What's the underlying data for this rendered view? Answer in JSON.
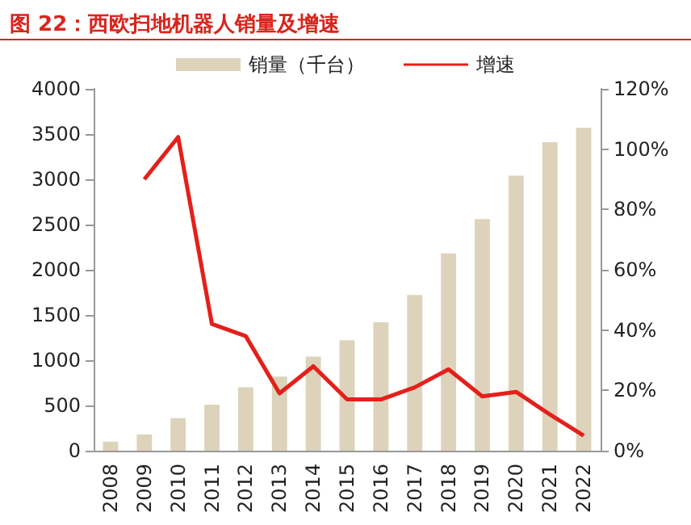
{
  "chart_data": {
    "type": "bar",
    "title": "图 22：西欧扫地机器人销量及增速",
    "categories": [
      "2008",
      "2009",
      "2010",
      "2011",
      "2012",
      "2013",
      "2014",
      "2015",
      "2016",
      "2017",
      "2018",
      "2019",
      "2020",
      "2021",
      "2022"
    ],
    "series": [
      {
        "name": "销量（千台）",
        "color": "#ddd3bb",
        "values": [
          100,
          180,
          360,
          510,
          700,
          820,
          1040,
          1220,
          1420,
          1720,
          2180,
          2560,
          3040,
          3410,
          3570
        ]
      },
      {
        "name": "增速",
        "type": "line",
        "axis": "y2",
        "color": "#e3201b",
        "values": [
          null,
          90,
          104,
          42,
          38,
          19,
          28,
          17,
          17,
          21,
          27,
          18,
          19.5,
          12,
          5
        ]
      }
    ],
    "ylim": [
      0,
      4000
    ],
    "yticks": [
      0,
      500,
      1000,
      1500,
      2000,
      2500,
      3000,
      3500,
      4000
    ],
    "y2lim": [
      0,
      120
    ],
    "y2ticks": [
      {
        "value": 0,
        "label": "0%"
      },
      {
        "value": 20,
        "label": "20%"
      },
      {
        "value": 40,
        "label": "40%"
      },
      {
        "value": 60,
        "label": "60%"
      },
      {
        "value": 80,
        "label": "80%"
      },
      {
        "value": 100,
        "label": "100%"
      },
      {
        "value": 120,
        "label": "120%"
      }
    ],
    "legend": "top",
    "grid": false,
    "marker": "none"
  }
}
